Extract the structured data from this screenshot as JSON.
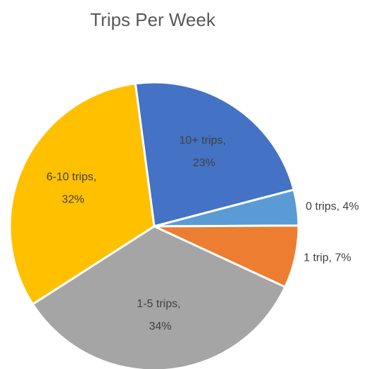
{
  "chart_data": {
    "type": "pie",
    "title": "Trips Per Week",
    "values": [
      23,
      4,
      7,
      34,
      32
    ],
    "value_labels": [
      "10+ trips, 23%",
      "0 trips, 4%",
      "1 trip, 7%",
      "1-5 trips, 34%",
      "6-10 trips, 32%"
    ],
    "colors": [
      "#4472c4",
      "#5b9bd5",
      "#ed7d31",
      "#a5a5a5",
      "#ffc000"
    ]
  }
}
